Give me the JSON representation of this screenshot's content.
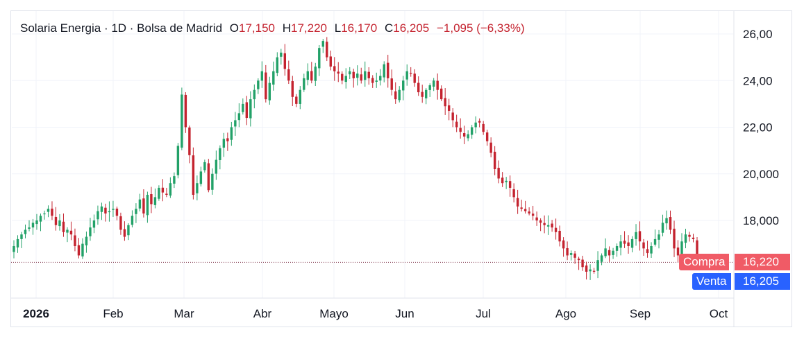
{
  "legend": {
    "symbol": "Solaria Energia · 1D · Bolsa de Madrid",
    "o_label": "O",
    "o_value": "17,150",
    "h_label": "H",
    "h_value": "17,220",
    "l_label": "L",
    "l_value": "16,170",
    "c_label": "C",
    "c_value": "16,205",
    "change": "−1,095 (−6,33%)"
  },
  "quotes": {
    "buy_label": "Compra",
    "buy_value": "16,220",
    "sell_label": "Venta",
    "sell_value": "16,205"
  },
  "colors": {
    "up": "#22a168",
    "down": "#c4232f",
    "buy": "#f05b66",
    "sell": "#2962ff",
    "grid": "#f0f3fa"
  },
  "chart_data": {
    "type": "candlestick",
    "yaxis": {
      "ticks": [
        "26,00",
        "24,00",
        "22,00",
        "20,000",
        "18,000"
      ],
      "tick_values": [
        26,
        24,
        22,
        20,
        18
      ],
      "ylim": [
        14.3,
        27
      ],
      "position": "right"
    },
    "xaxis": {
      "ticks": [
        "2026",
        "Feb",
        "Mar",
        "Abr",
        "Mayo",
        "Jun",
        "Jul",
        "Ago",
        "Sep",
        "Oct"
      ],
      "range_months": [
        0,
        9.85
      ]
    },
    "reference_line": 16.205,
    "grid": true,
    "close_series": [
      16.9,
      17.2,
      17.4,
      17.6,
      17.7,
      17.9,
      18.0,
      18.2,
      18.3,
      18.5,
      18.2,
      17.8,
      18.0,
      17.5,
      17.6,
      17.4,
      16.9,
      16.5,
      17.0,
      17.3,
      17.7,
      18.0,
      18.4,
      18.6,
      18.3,
      18.4,
      18.5,
      18.2,
      17.6,
      17.3,
      17.8,
      18.2,
      18.5,
      18.9,
      18.3,
      19.1,
      18.7,
      19.0,
      19.4,
      19.2,
      19.1,
      19.6,
      19.9,
      21.2,
      23.4,
      22.0,
      20.8,
      19.1,
      19.6,
      20.1,
      20.5,
      19.3,
      20.0,
      20.6,
      21.1,
      21.5,
      21.4,
      22.0,
      22.3,
      22.6,
      23.0,
      22.4,
      23.2,
      23.6,
      24.0,
      24.4,
      23.2,
      23.9,
      24.4,
      25.0,
      25.2,
      24.5,
      24.0,
      23.3,
      23.0,
      23.6,
      24.1,
      24.4,
      24.0,
      24.6,
      25.4,
      25.7,
      25.0,
      24.6,
      24.4,
      24.3,
      24.0,
      24.2,
      24.4,
      24.1,
      24.3,
      24.0,
      24.4,
      24.1,
      23.9,
      24.0,
      24.2,
      24.7,
      24.1,
      23.6,
      23.2,
      23.6,
      24.0,
      24.4,
      24.3,
      23.9,
      23.5,
      23.3,
      23.6,
      23.8,
      24.0,
      23.6,
      23.2,
      22.9,
      22.7,
      22.3,
      22.0,
      21.8,
      21.6,
      21.7,
      22.0,
      22.2,
      22.2,
      21.8,
      21.4,
      20.9,
      20.2,
      19.8,
      19.6,
      19.7,
      19.4,
      19.0,
      18.6,
      18.5,
      18.4,
      18.3,
      18.2,
      18.0,
      17.9,
      17.8,
      17.8,
      17.7,
      17.5,
      17.1,
      16.8,
      16.5,
      16.6,
      16.4,
      16.3,
      16.0,
      15.8,
      15.9,
      15.8,
      16.3,
      16.5,
      16.8,
      16.5,
      16.7,
      16.9,
      17.1,
      17.0,
      16.9,
      17.2,
      17.5,
      17.1,
      16.8,
      16.6,
      16.9,
      17.2,
      17.4,
      17.9,
      18.1,
      17.6,
      16.8,
      16.5,
      17.1,
      17.4,
      17.3,
      17.2,
      16.205
    ]
  }
}
